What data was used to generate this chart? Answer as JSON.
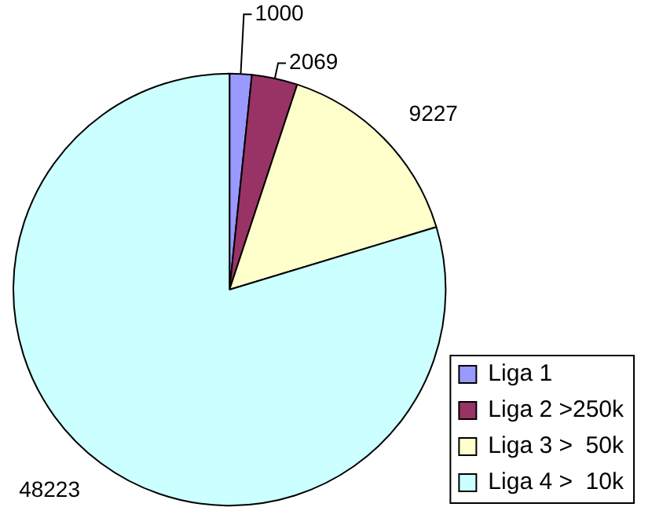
{
  "chart_data": {
    "type": "pie",
    "categories": [
      "Liga 1",
      "Liga 2 >250k",
      "Liga 3 >  50k",
      "Liga 4 >  10k"
    ],
    "values": [
      1000,
      2069,
      9227,
      48223
    ],
    "colors": [
      "#9999ff",
      "#993366",
      "#ffffcc",
      "#ccffff"
    ],
    "data_labels": true,
    "legend": "bottom right"
  }
}
